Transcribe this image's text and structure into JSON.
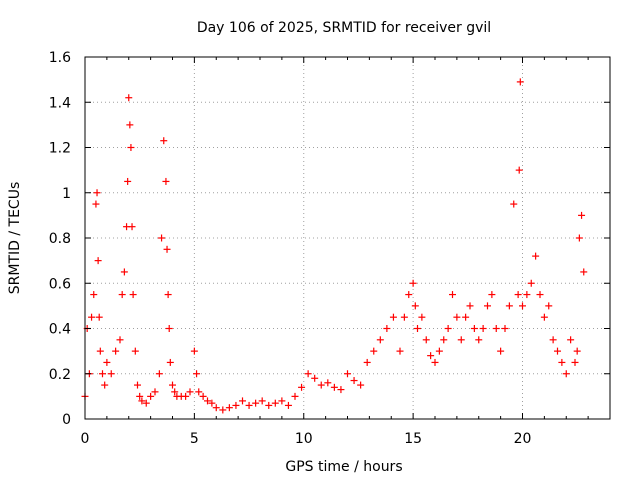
{
  "chart_data": {
    "type": "scatter",
    "title": "Day 106 of 2025, SRMTID for receiver gvil",
    "xlabel": "GPS time / hours",
    "ylabel": "SRMTID / TECUs",
    "xlim": [
      0,
      24
    ],
    "ylim": [
      0,
      1.6
    ],
    "xticks": [
      0,
      5,
      10,
      15,
      20
    ],
    "xtick_labels": [
      "0",
      "5",
      "10",
      "15",
      "20"
    ],
    "yticks": [
      0,
      0.2,
      0.4,
      0.6,
      0.8,
      1.0,
      1.2,
      1.4,
      1.6
    ],
    "ytick_labels": [
      "0",
      "0.2",
      "0.4",
      "0.6",
      "0.8",
      "1",
      "1.2",
      "1.4",
      "1.6"
    ],
    "grid": true,
    "marker": "+",
    "series": [
      {
        "name": "SRMTID",
        "color": "#ff0000",
        "x": [
          0.0,
          0.1,
          0.2,
          0.3,
          0.4,
          0.5,
          0.55,
          0.6,
          0.65,
          0.7,
          0.8,
          0.9,
          1.0,
          1.2,
          1.4,
          1.6,
          1.7,
          1.8,
          1.9,
          1.95,
          2.0,
          2.05,
          2.1,
          2.15,
          2.2,
          2.3,
          2.4,
          2.5,
          2.6,
          2.8,
          3.0,
          3.2,
          3.4,
          3.5,
          3.6,
          3.7,
          3.75,
          3.8,
          3.85,
          3.9,
          4.0,
          4.1,
          4.2,
          4.4,
          4.6,
          4.8,
          5.0,
          5.1,
          5.2,
          5.4,
          5.6,
          5.8,
          6.0,
          6.3,
          6.6,
          6.9,
          7.2,
          7.5,
          7.8,
          8.1,
          8.4,
          8.7,
          9.0,
          9.3,
          9.6,
          9.9,
          10.2,
          10.5,
          10.8,
          11.1,
          11.4,
          11.7,
          12.0,
          12.3,
          12.6,
          12.9,
          13.2,
          13.5,
          13.8,
          14.1,
          14.4,
          14.6,
          14.8,
          15.0,
          15.1,
          15.2,
          15.4,
          15.6,
          15.8,
          16.0,
          16.2,
          16.4,
          16.6,
          16.8,
          17.0,
          17.2,
          17.4,
          17.6,
          17.8,
          18.0,
          18.2,
          18.4,
          18.6,
          18.8,
          19.0,
          19.2,
          19.4,
          19.6,
          19.8,
          19.85,
          19.9,
          20.0,
          20.2,
          20.4,
          20.6,
          20.8,
          21.0,
          21.2,
          21.4,
          21.6,
          21.8,
          22.0,
          22.2,
          22.4,
          22.5,
          22.6,
          22.7,
          22.8
        ],
        "y": [
          0.1,
          0.4,
          0.2,
          0.45,
          0.55,
          0.95,
          1.0,
          0.7,
          0.45,
          0.3,
          0.2,
          0.15,
          0.25,
          0.2,
          0.3,
          0.35,
          0.55,
          0.65,
          0.85,
          1.05,
          1.42,
          1.3,
          1.2,
          0.85,
          0.55,
          0.3,
          0.15,
          0.1,
          0.08,
          0.07,
          0.1,
          0.12,
          0.2,
          0.8,
          1.23,
          1.05,
          0.75,
          0.55,
          0.4,
          0.25,
          0.15,
          0.12,
          0.1,
          0.1,
          0.1,
          0.12,
          0.3,
          0.2,
          0.12,
          0.1,
          0.08,
          0.07,
          0.05,
          0.04,
          0.05,
          0.06,
          0.08,
          0.06,
          0.07,
          0.08,
          0.06,
          0.07,
          0.08,
          0.06,
          0.1,
          0.14,
          0.2,
          0.18,
          0.15,
          0.16,
          0.14,
          0.13,
          0.2,
          0.17,
          0.15,
          0.25,
          0.3,
          0.35,
          0.4,
          0.45,
          0.3,
          0.45,
          0.55,
          0.6,
          0.5,
          0.4,
          0.45,
          0.35,
          0.28,
          0.25,
          0.3,
          0.35,
          0.4,
          0.55,
          0.45,
          0.35,
          0.45,
          0.5,
          0.4,
          0.35,
          0.4,
          0.5,
          0.55,
          0.4,
          0.3,
          0.4,
          0.5,
          0.95,
          0.55,
          1.1,
          1.49,
          0.5,
          0.55,
          0.6,
          0.72,
          0.55,
          0.45,
          0.5,
          0.35,
          0.3,
          0.25,
          0.2,
          0.35,
          0.25,
          0.3,
          0.8,
          0.9,
          0.65
        ]
      }
    ]
  }
}
